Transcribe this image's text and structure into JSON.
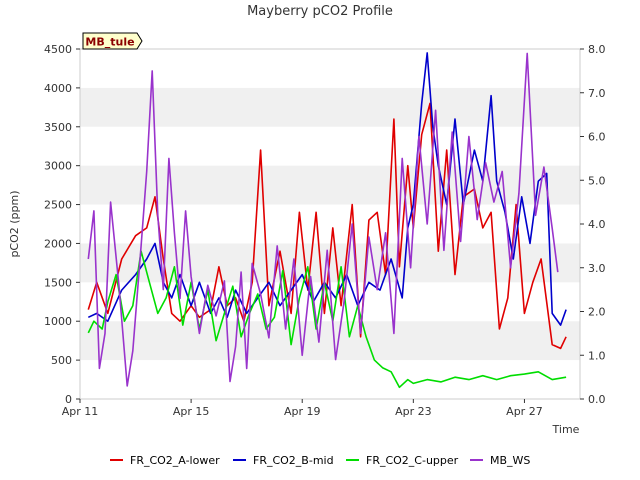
{
  "chart_data": {
    "type": "line",
    "title": "Mayberry pCO2 Profile",
    "site_label": "MB_tule",
    "xlabel": "Time",
    "ylabel": "pCO2 (ppm)",
    "ylim": [
      0,
      4500
    ],
    "y2lim": [
      0,
      8.0
    ],
    "xlim_days": [
      11,
      29
    ],
    "x_ticks": [
      {
        "day": 11,
        "label": "Apr 11"
      },
      {
        "day": 15,
        "label": "Apr 15"
      },
      {
        "day": 19,
        "label": "Apr 19"
      },
      {
        "day": 23,
        "label": "Apr 23"
      },
      {
        "day": 27,
        "label": "Apr 27"
      }
    ],
    "y_ticks": [
      0,
      500,
      1000,
      1500,
      2000,
      2500,
      3000,
      3500,
      4000,
      4500
    ],
    "y2_ticks": [
      "0.0",
      "1.0",
      "2.0",
      "3.0",
      "4.0",
      "5.0",
      "6.0",
      "7.0",
      "8.0"
    ],
    "series": [
      {
        "name": "FR_CO2_A-lower",
        "color": "#e00000",
        "axis": "left",
        "x": [
          11.3,
          11.6,
          12,
          12.5,
          13,
          13.4,
          13.7,
          14,
          14.3,
          14.6,
          15,
          15.3,
          15.7,
          16,
          16.3,
          16.6,
          16.9,
          17.2,
          17.5,
          17.8,
          18.2,
          18.6,
          18.9,
          19.2,
          19.5,
          19.8,
          20.1,
          20.4,
          20.8,
          21.1,
          21.4,
          21.7,
          22,
          22.3,
          22.5,
          22.8,
          23,
          23.3,
          23.6,
          23.9,
          24.2,
          24.5,
          24.8,
          25.2,
          25.5,
          25.8,
          26.1,
          26.4,
          26.7,
          27,
          27.3,
          27.6,
          28,
          28.3,
          28.5
        ],
        "values": [
          1150,
          1500,
          1100,
          1800,
          2100,
          2200,
          2600,
          1800,
          1100,
          1000,
          1200,
          1050,
          1150,
          1700,
          1200,
          1300,
          1000,
          1500,
          3200,
          1200,
          1900,
          1100,
          2400,
          1400,
          2400,
          1100,
          2200,
          1200,
          2500,
          800,
          2300,
          2400,
          1600,
          3600,
          1700,
          3000,
          2200,
          3400,
          3800,
          1900,
          3200,
          1600,
          2600,
          2700,
          2200,
          2400,
          900,
          1300,
          2500,
          1100,
          1500,
          1800,
          700,
          650,
          800
        ]
      },
      {
        "name": "FR_CO2_B-mid",
        "color": "#0000cc",
        "axis": "left",
        "x": [
          11.3,
          11.6,
          12,
          12.5,
          13,
          13.4,
          13.7,
          14,
          14.3,
          14.6,
          15,
          15.3,
          15.7,
          16,
          16.3,
          16.6,
          17,
          17.4,
          17.8,
          18.2,
          18.6,
          19,
          19.4,
          19.8,
          20.2,
          20.6,
          21,
          21.4,
          21.8,
          22.2,
          22.6,
          22.8,
          23,
          23.3,
          23.5,
          23.7,
          23.9,
          24.2,
          24.5,
          24.8,
          25.2,
          25.5,
          25.8,
          26,
          26.3,
          26.6,
          26.9,
          27.2,
          27.5,
          27.8,
          28,
          28.3,
          28.5
        ],
        "values": [
          1050,
          1100,
          1000,
          1400,
          1600,
          1800,
          2000,
          1500,
          1300,
          1600,
          1200,
          1500,
          1100,
          1300,
          1050,
          1400,
          1100,
          1300,
          1500,
          1200,
          1400,
          1600,
          1250,
          1500,
          1300,
          1600,
          1200,
          1500,
          1400,
          1800,
          1300,
          2200,
          2500,
          3800,
          4450,
          3500,
          3000,
          2500,
          3600,
          2500,
          3200,
          2800,
          3900,
          2800,
          2400,
          1800,
          2600,
          2000,
          2800,
          2900,
          1100,
          950,
          1150
        ]
      },
      {
        "name": "FR_CO2_C-upper",
        "color": "#00dd00",
        "axis": "left",
        "x": [
          11.3,
          11.5,
          11.8,
          12,
          12.3,
          12.6,
          12.9,
          13.2,
          13.5,
          13.8,
          14.1,
          14.4,
          14.7,
          15,
          15.3,
          15.6,
          15.9,
          16.2,
          16.5,
          16.8,
          17.1,
          17.4,
          17.7,
          18,
          18.3,
          18.6,
          18.9,
          19.2,
          19.5,
          19.8,
          20.1,
          20.4,
          20.7,
          21,
          21.3,
          21.6,
          21.9,
          22.2,
          22.5,
          22.8,
          23,
          23.5,
          24,
          24.5,
          25,
          25.5,
          26,
          26.5,
          27,
          27.5,
          28,
          28.5
        ],
        "values": [
          850,
          1000,
          900,
          1250,
          1600,
          1000,
          1200,
          1900,
          1500,
          1100,
          1300,
          1700,
          950,
          1500,
          900,
          1400,
          750,
          1100,
          1450,
          800,
          1100,
          1350,
          900,
          1050,
          1650,
          700,
          1300,
          1700,
          900,
          1500,
          1000,
          1700,
          800,
          1200,
          800,
          500,
          400,
          350,
          150,
          250,
          200,
          250,
          220,
          280,
          250,
          300,
          250,
          300,
          320,
          350,
          250,
          280
        ]
      },
      {
        "name": "MB_WS",
        "color": "#9933cc",
        "axis": "right",
        "x": [
          11.3,
          11.5,
          11.7,
          11.9,
          12.1,
          12.4,
          12.7,
          12.9,
          13.2,
          13.4,
          13.6,
          13.8,
          14,
          14.2,
          14.4,
          14.6,
          14.8,
          15,
          15.3,
          15.6,
          15.9,
          16.2,
          16.4,
          16.6,
          16.8,
          17,
          17.2,
          17.5,
          17.8,
          18.1,
          18.4,
          18.7,
          19,
          19.3,
          19.6,
          19.9,
          20.2,
          20.5,
          20.8,
          21.1,
          21.4,
          21.7,
          22,
          22.3,
          22.6,
          22.9,
          23.2,
          23.5,
          23.8,
          24.1,
          24.4,
          24.7,
          25,
          25.3,
          25.6,
          25.9,
          26.2,
          26.5,
          26.8,
          27.1,
          27.4,
          27.7,
          28,
          28.2
        ],
        "values": [
          3.2,
          4.3,
          0.7,
          1.5,
          4.5,
          2.6,
          0.3,
          1.1,
          3.5,
          5.2,
          7.5,
          4.2,
          2.5,
          5.5,
          3.8,
          2.3,
          4.3,
          2.8,
          1.5,
          2.6,
          1.9,
          2.7,
          0.4,
          1.2,
          2.9,
          0.7,
          3.1,
          2.4,
          1.4,
          3.5,
          1.6,
          3.2,
          1.0,
          2.8,
          1.3,
          3.4,
          0.9,
          2.2,
          4.0,
          1.5,
          3.7,
          2.5,
          3.8,
          1.5,
          5.5,
          3.0,
          6.0,
          4.0,
          6.6,
          3.4,
          6.1,
          3.6,
          6.0,
          4.1,
          5.4,
          4.5,
          5.2,
          3.0,
          4.7,
          7.9,
          4.2,
          5.3,
          3.9,
          2.9
        ]
      }
    ]
  }
}
